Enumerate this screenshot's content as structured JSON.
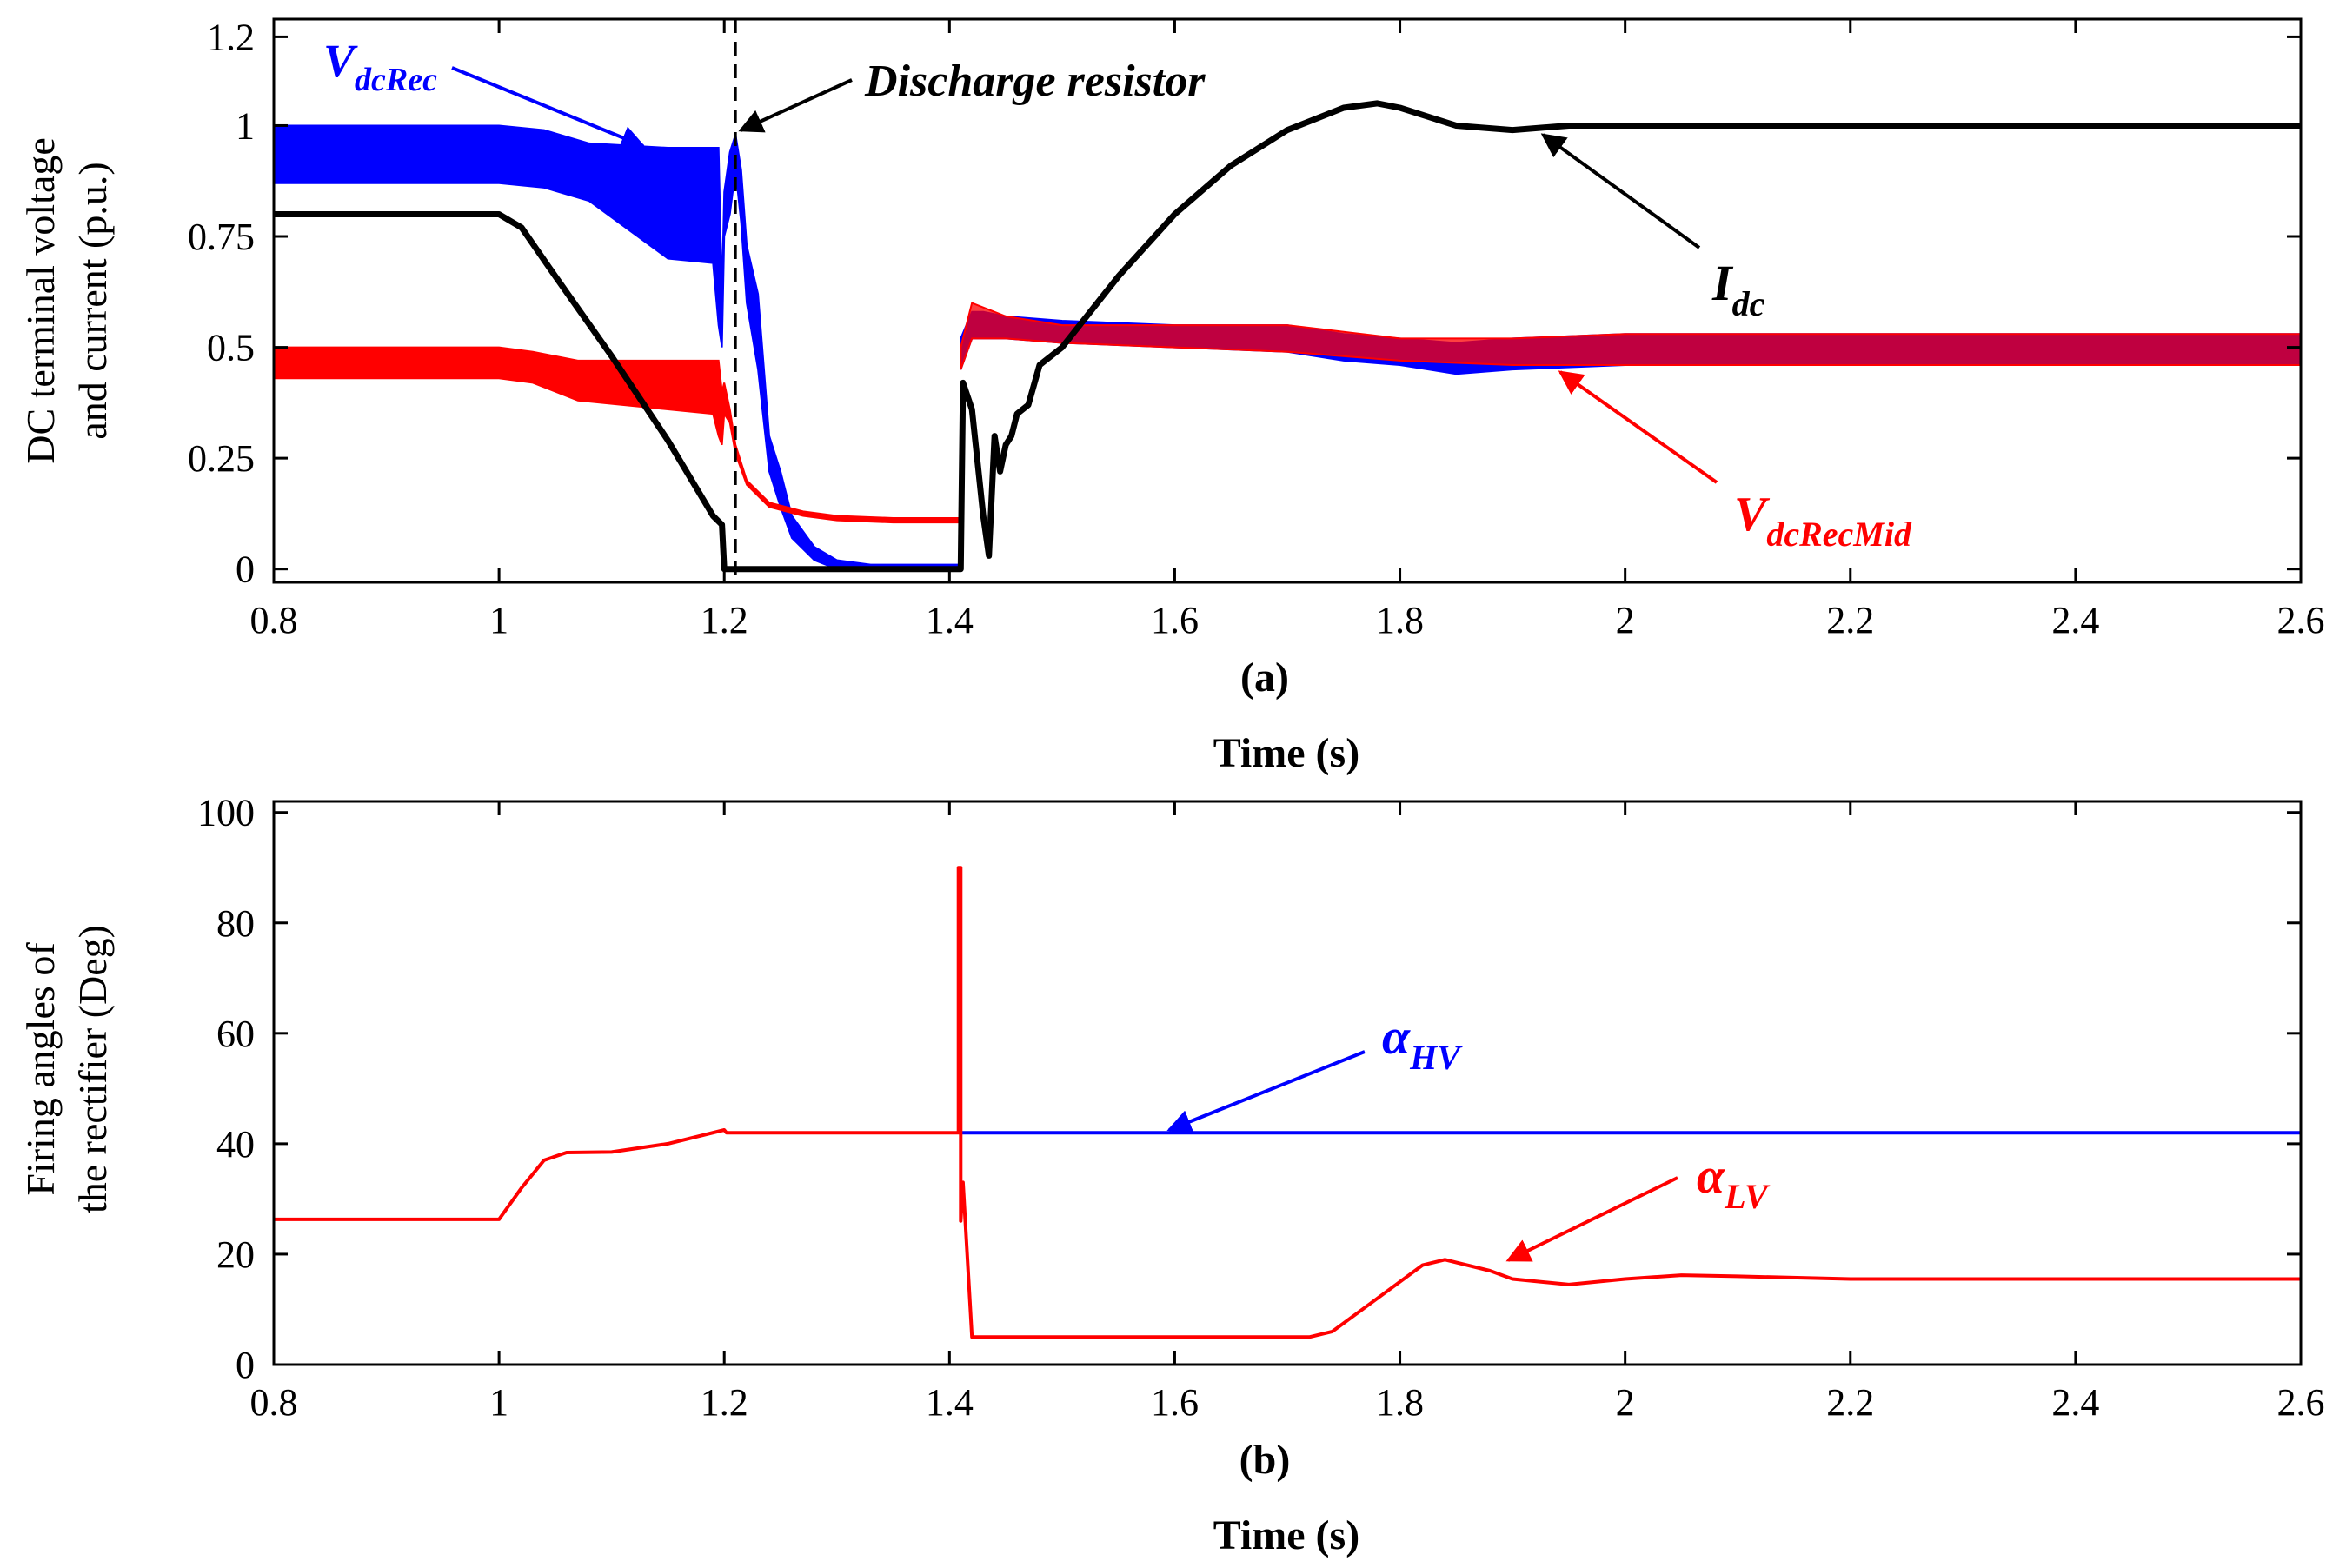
{
  "chart_data": [
    {
      "type": "line",
      "panel_label": "(a)",
      "xlabel": "Time (s)",
      "ylabel_lines": [
        "DC terminal voltage",
        "and current (p.u.)"
      ],
      "xlim": [
        0.8,
        2.6
      ],
      "ylim": [
        -0.03,
        1.24
      ],
      "xticks": [
        "0.8",
        "1",
        "1.2",
        "1.4",
        "1.6",
        "1.8",
        "2",
        "2.2",
        "2.4",
        "2.6"
      ],
      "yticks": [
        "0",
        "0.25",
        "0.5",
        "0.75",
        "1",
        "1.2"
      ],
      "series": [
        {
          "name": "VdcRec",
          "color": "#0000ff",
          "band": true,
          "upper": [
            [
              0.8,
              1.0
            ],
            [
              1.0,
              1.0
            ],
            [
              1.04,
              0.99
            ],
            [
              1.08,
              0.96
            ],
            [
              1.15,
              0.95
            ],
            [
              1.19,
              0.95
            ],
            [
              1.195,
              0.95
            ],
            [
              1.198,
              0.62
            ],
            [
              1.2,
              0.85
            ],
            [
              1.205,
              0.94
            ],
            [
              1.21,
              0.98
            ],
            [
              1.215,
              0.9
            ],
            [
              1.22,
              0.73
            ],
            [
              1.23,
              0.62
            ],
            [
              1.24,
              0.3
            ],
            [
              1.25,
              0.22
            ],
            [
              1.26,
              0.12
            ],
            [
              1.28,
              0.05
            ],
            [
              1.3,
              0.02
            ],
            [
              1.33,
              0.01
            ],
            [
              1.41,
              0.01
            ]
          ],
          "lower": [
            [
              0.8,
              0.87
            ],
            [
              1.0,
              0.87
            ],
            [
              1.04,
              0.86
            ],
            [
              1.08,
              0.83
            ],
            [
              1.15,
              0.7
            ],
            [
              1.19,
              0.69
            ],
            [
              1.195,
              0.55
            ],
            [
              1.198,
              0.5
            ],
            [
              1.2,
              0.75
            ],
            [
              1.205,
              0.8
            ],
            [
              1.21,
              0.9
            ],
            [
              1.215,
              0.78
            ],
            [
              1.22,
              0.6
            ],
            [
              1.23,
              0.45
            ],
            [
              1.24,
              0.22
            ],
            [
              1.25,
              0.14
            ],
            [
              1.26,
              0.07
            ],
            [
              1.28,
              0.02
            ],
            [
              1.3,
              0.0
            ],
            [
              1.33,
              0.0
            ],
            [
              1.41,
              0.0
            ]
          ]
        },
        {
          "name": "VdcRec (post-fault)",
          "color": "#0000ff",
          "band": true,
          "upper": [
            [
              1.41,
              0.52
            ],
            [
              1.42,
              0.58
            ],
            [
              1.43,
              0.58
            ],
            [
              1.45,
              0.57
            ],
            [
              1.5,
              0.56
            ],
            [
              1.6,
              0.55
            ],
            [
              1.7,
              0.55
            ],
            [
              1.75,
              0.53
            ],
            [
              1.8,
              0.52
            ],
            [
              1.85,
              0.51
            ],
            [
              1.9,
              0.52
            ],
            [
              2.0,
              0.53
            ],
            [
              2.2,
              0.53
            ],
            [
              2.4,
              0.53
            ],
            [
              2.6,
              0.53
            ]
          ],
          "lower": [
            [
              1.41,
              0.45
            ],
            [
              1.42,
              0.52
            ],
            [
              1.43,
              0.52
            ],
            [
              1.45,
              0.52
            ],
            [
              1.5,
              0.51
            ],
            [
              1.6,
              0.5
            ],
            [
              1.7,
              0.49
            ],
            [
              1.75,
              0.47
            ],
            [
              1.8,
              0.46
            ],
            [
              1.85,
              0.44
            ],
            [
              1.9,
              0.45
            ],
            [
              2.0,
              0.46
            ],
            [
              2.2,
              0.46
            ],
            [
              2.4,
              0.46
            ],
            [
              2.6,
              0.46
            ]
          ]
        },
        {
          "name": "VdcRecMid",
          "color": "#ff0000",
          "band": true,
          "upper": [
            [
              0.8,
              0.5
            ],
            [
              1.0,
              0.5
            ],
            [
              1.03,
              0.49
            ],
            [
              1.07,
              0.47
            ],
            [
              1.15,
              0.47
            ],
            [
              1.19,
              0.47
            ],
            [
              1.195,
              0.47
            ],
            [
              1.198,
              0.4
            ],
            [
              1.2,
              0.42
            ],
            [
              1.205,
              0.36
            ],
            [
              1.21,
              0.28
            ],
            [
              1.22,
              0.2
            ],
            [
              1.24,
              0.15
            ],
            [
              1.27,
              0.13
            ],
            [
              1.3,
              0.12
            ],
            [
              1.35,
              0.115
            ],
            [
              1.41,
              0.115
            ]
          ],
          "lower": [
            [
              0.8,
              0.43
            ],
            [
              1.0,
              0.43
            ],
            [
              1.03,
              0.42
            ],
            [
              1.07,
              0.38
            ],
            [
              1.15,
              0.36
            ],
            [
              1.19,
              0.35
            ],
            [
              1.195,
              0.3
            ],
            [
              1.198,
              0.28
            ],
            [
              1.2,
              0.35
            ],
            [
              1.205,
              0.33
            ],
            [
              1.21,
              0.26
            ],
            [
              1.22,
              0.19
            ],
            [
              1.24,
              0.14
            ],
            [
              1.27,
              0.12
            ],
            [
              1.3,
              0.11
            ],
            [
              1.35,
              0.105
            ],
            [
              1.41,
              0.105
            ]
          ]
        },
        {
          "name": "VdcRecMid (post-fault)",
          "color": "#ff0000",
          "band": true,
          "alpha": 0.75,
          "upper": [
            [
              1.41,
              0.5
            ],
            [
              1.42,
              0.6
            ],
            [
              1.45,
              0.57
            ],
            [
              1.5,
              0.55
            ],
            [
              1.6,
              0.55
            ],
            [
              1.7,
              0.55
            ],
            [
              1.8,
              0.52
            ],
            [
              1.9,
              0.52
            ],
            [
              2.0,
              0.53
            ],
            [
              2.2,
              0.53
            ],
            [
              2.4,
              0.53
            ],
            [
              2.6,
              0.53
            ]
          ],
          "lower": [
            [
              1.41,
              0.45
            ],
            [
              1.42,
              0.52
            ],
            [
              1.45,
              0.52
            ],
            [
              1.5,
              0.51
            ],
            [
              1.6,
              0.5
            ],
            [
              1.7,
              0.49
            ],
            [
              1.8,
              0.47
            ],
            [
              1.9,
              0.46
            ],
            [
              2.0,
              0.46
            ],
            [
              2.2,
              0.46
            ],
            [
              2.4,
              0.46
            ],
            [
              2.6,
              0.46
            ]
          ]
        },
        {
          "name": "Idc",
          "color": "#000000",
          "points": [
            [
              0.8,
              0.8
            ],
            [
              1.0,
              0.8
            ],
            [
              1.02,
              0.77
            ],
            [
              1.05,
              0.66
            ],
            [
              1.1,
              0.48
            ],
            [
              1.15,
              0.29
            ],
            [
              1.19,
              0.12
            ],
            [
              1.198,
              0.1
            ],
            [
              1.2,
              0.0
            ],
            [
              1.41,
              0.0
            ],
            [
              1.412,
              0.42
            ],
            [
              1.42,
              0.36
            ],
            [
              1.425,
              0.24
            ],
            [
              1.43,
              0.12
            ],
            [
              1.435,
              0.03
            ],
            [
              1.44,
              0.3
            ],
            [
              1.445,
              0.22
            ],
            [
              1.45,
              0.28
            ],
            [
              1.455,
              0.3
            ],
            [
              1.46,
              0.35
            ],
            [
              1.47,
              0.37
            ],
            [
              1.48,
              0.46
            ],
            [
              1.5,
              0.5
            ],
            [
              1.55,
              0.66
            ],
            [
              1.6,
              0.8
            ],
            [
              1.65,
              0.91
            ],
            [
              1.7,
              0.99
            ],
            [
              1.75,
              1.04
            ],
            [
              1.78,
              1.05
            ],
            [
              1.8,
              1.04
            ],
            [
              1.85,
              1.0
            ],
            [
              1.9,
              0.99
            ],
            [
              1.95,
              1.0
            ],
            [
              2.0,
              1.0
            ],
            [
              2.1,
              1.0
            ],
            [
              2.6,
              1.0
            ]
          ]
        }
      ],
      "vline_x": 1.21,
      "annotations": {
        "vdcrec": {
          "base": "V",
          "sub": "dcRec"
        },
        "discharge": "Discharge resistor",
        "idc": {
          "base": "I",
          "sub": "dc"
        },
        "vdcrecmid": {
          "base": "V",
          "sub": "dcRecMid"
        }
      }
    },
    {
      "type": "line",
      "panel_label": "(b)",
      "xlabel": "Time (s)",
      "ylabel_lines": [
        "Firing angles of",
        "the rectifier (Deg)"
      ],
      "xlim": [
        0.8,
        2.6
      ],
      "ylim": [
        0,
        102
      ],
      "xticks": [
        "0.8",
        "1",
        "1.2",
        "1.4",
        "1.6",
        "1.8",
        "2",
        "2.2",
        "2.4",
        "2.6"
      ],
      "yticks": [
        "0",
        "20",
        "40",
        "60",
        "80",
        "100"
      ],
      "series": [
        {
          "name": "alpha_HV",
          "color": "#0000ff",
          "points": [
            [
              1.41,
              42
            ],
            [
              2.6,
              42
            ]
          ]
        },
        {
          "name": "alpha_LV",
          "color": "#ff0000",
          "points": [
            [
              0.8,
              26.3
            ],
            [
              1.0,
              26.3
            ],
            [
              1.02,
              32
            ],
            [
              1.04,
              37
            ],
            [
              1.06,
              38.4
            ],
            [
              1.1,
              38.5
            ],
            [
              1.15,
              40
            ],
            [
              1.2,
              42.5
            ],
            [
              1.202,
              42
            ],
            [
              1.408,
              42
            ],
            [
              1.408,
              90
            ],
            [
              1.41,
              90
            ],
            [
              1.41,
              26
            ],
            [
              1.412,
              33
            ],
            [
              1.414,
              26
            ],
            [
              1.42,
              5
            ],
            [
              1.5,
              5
            ],
            [
              1.6,
              5
            ],
            [
              1.72,
              5
            ],
            [
              1.74,
              6
            ],
            [
              1.78,
              12
            ],
            [
              1.82,
              18
            ],
            [
              1.84,
              19
            ],
            [
              1.88,
              17
            ],
            [
              1.9,
              15.5
            ],
            [
              1.95,
              14.5
            ],
            [
              2.0,
              15.5
            ],
            [
              2.05,
              16.2
            ],
            [
              2.1,
              16
            ],
            [
              2.2,
              15.5
            ],
            [
              2.3,
              15.5
            ],
            [
              2.6,
              15.5
            ]
          ]
        }
      ],
      "annotations": {
        "alpha_hv": {
          "base": "α",
          "sub": "HV"
        },
        "alpha_lv": {
          "base": "α",
          "sub": "LV"
        }
      }
    }
  ]
}
